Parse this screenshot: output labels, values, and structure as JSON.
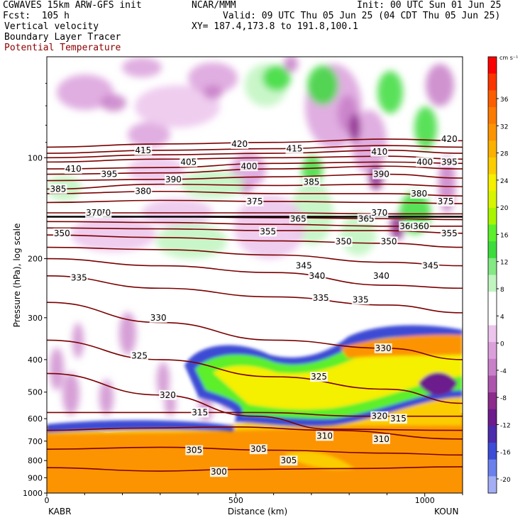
{
  "header": {
    "model": "CGWAVES 15km ARW-GFS init",
    "org": "NCAR/MMM",
    "init": "Init: 00 UTC Sun 01 Jun 25",
    "fcst": "Fcst:  105 h",
    "valid": "Valid: 09 UTC Thu 05 Jun 25 (04 CDT Thu 05 Jun 25)",
    "field1": "Vertical velocity",
    "field2": "Boundary Layer Tracer",
    "field3": "Potential Temperature",
    "xy": "XY= 187.4,173.8 to 191.8,100.1"
  },
  "colors": {
    "theta_line": "#7a0000",
    "potential_temp_label": "#8b0000",
    "tropopause": "#000000"
  },
  "chart_data": {
    "type": "heatmap",
    "xlabel": "Distance (km)",
    "ylabel": "Pressure (hPa), log scale",
    "xlim": [
      0,
      1100
    ],
    "x_ticks": [
      0,
      500,
      1000
    ],
    "ylim": [
      1000,
      50
    ],
    "y_scale": "log",
    "y_ticks": [
      100,
      200,
      300,
      400,
      500,
      600,
      700,
      800,
      900,
      1000
    ],
    "endpoints": {
      "left": "KABR",
      "right": "KOUN"
    },
    "colorbar": {
      "units": "cm s⁻¹",
      "ticks": [
        36,
        32,
        28,
        24,
        20,
        16,
        12,
        8,
        4,
        0,
        -4,
        -8,
        -12,
        -16,
        -20
      ],
      "colors": [
        "#fb0000",
        "#fb3500",
        "#fb5e00",
        "#fb7a00",
        "#fb9400",
        "#fbb100",
        "#fbcc00",
        "#f5ef00",
        "#d7f500",
        "#a9f500",
        "#5cef2c",
        "#3cdc3c",
        "#84e884",
        "#c0f5c0",
        "#ffffff",
        "#ffffff",
        "#ecc4ec",
        "#dba0dc",
        "#c880c8",
        "#ad55ad",
        "#8c2c8c",
        "#6c1c8c",
        "#4a2cac",
        "#3c4cd4",
        "#6c80ec",
        "#a4aef5"
      ]
    },
    "tropopause_pressure": 150,
    "isentropes": [
      {
        "theta": 300,
        "points": [
          [
            0,
            840
          ],
          [
            300,
            860
          ],
          [
            500,
            850
          ],
          [
            800,
            845
          ],
          [
            1100,
            835
          ]
        ],
        "label_x": 455,
        "label_p": 865
      },
      {
        "theta": 305,
        "points": [
          [
            0,
            740
          ],
          [
            300,
            730
          ],
          [
            600,
            745
          ],
          [
            900,
            760
          ],
          [
            1100,
            770
          ]
        ],
        "label_x": 390,
        "label_p": 745
      },
      {
        "theta": 310,
        "points": [
          [
            0,
            650
          ],
          [
            250,
            640
          ],
          [
            500,
            635
          ],
          [
            750,
            650
          ],
          [
            1100,
            690
          ]
        ],
        "label_x": 735,
        "label_p": 675
      },
      {
        "theta": 315,
        "points": [
          [
            0,
            575
          ],
          [
            300,
            575
          ],
          [
            550,
            575
          ],
          [
            850,
            590
          ],
          [
            1100,
            590
          ]
        ],
        "label_x": 930,
        "label_p": 600
      },
      {
        "theta": 320,
        "points": [
          [
            0,
            440
          ],
          [
            300,
            510
          ],
          [
            550,
            590
          ],
          [
            750,
            645
          ],
          [
            1100,
            650
          ]
        ],
        "label_x": 320,
        "label_p": 510
      },
      {
        "theta": 325,
        "points": [
          [
            0,
            350
          ],
          [
            300,
            400
          ],
          [
            600,
            450
          ],
          [
            900,
            490
          ],
          [
            1100,
            540
          ]
        ],
        "label_x": 245,
        "label_p": 390
      },
      {
        "theta": 330,
        "points": [
          [
            0,
            270
          ],
          [
            300,
            310
          ],
          [
            600,
            350
          ],
          [
            900,
            370
          ],
          [
            1100,
            400
          ]
        ],
        "label_x": 295,
        "label_p": 300
      },
      {
        "theta": 335,
        "points": [
          [
            0,
            225
          ],
          [
            300,
            245
          ],
          [
            600,
            260
          ],
          [
            900,
            275
          ],
          [
            1100,
            290
          ]
        ],
        "label_x": 85,
        "label_p": 228
      },
      {
        "theta": 340,
        "points": [
          [
            0,
            200
          ],
          [
            300,
            210
          ],
          [
            600,
            220
          ],
          [
            900,
            240
          ],
          [
            1100,
            245
          ]
        ],
        "label_x": 715,
        "label_p": 225
      },
      {
        "theta": 345,
        "points": [
          [
            0,
            185
          ],
          [
            300,
            188
          ],
          [
            600,
            195
          ],
          [
            900,
            205
          ],
          [
            1100,
            210
          ]
        ],
        "label_x": 680,
        "label_p": 210
      },
      {
        "theta": 350,
        "points": [
          [
            0,
            170
          ],
          [
            300,
            173
          ],
          [
            600,
            177
          ],
          [
            900,
            180
          ],
          [
            1100,
            185
          ]
        ],
        "label_x": 785,
        "label_p": 178
      },
      {
        "theta": 355,
        "points": [
          [
            0,
            162
          ],
          [
            300,
            163
          ],
          [
            600,
            165
          ],
          [
            900,
            165
          ],
          [
            1100,
            168
          ]
        ],
        "label_x": 585,
        "label_p": 166
      },
      {
        "theta": 360,
        "points": [
          [
            0,
            155
          ],
          [
            300,
            156
          ],
          [
            600,
            158
          ],
          [
            900,
            160
          ],
          [
            1100,
            160
          ]
        ],
        "label_x": 955,
        "label_p": 160
      },
      {
        "theta": 365,
        "points": [
          [
            0,
            150
          ],
          [
            300,
            150
          ],
          [
            600,
            151
          ],
          [
            900,
            152
          ],
          [
            1100,
            153
          ]
        ],
        "label_x": 665,
        "label_p": 152
      },
      {
        "theta": 370,
        "points": [
          [
            0,
            146
          ],
          [
            300,
            146
          ],
          [
            600,
            146
          ],
          [
            900,
            147
          ],
          [
            1100,
            147
          ]
        ],
        "label_x": 148,
        "label_p": 146
      },
      {
        "theta": 375,
        "points": [
          [
            0,
            136
          ],
          [
            300,
            134
          ],
          [
            600,
            135
          ],
          [
            900,
            136
          ],
          [
            1100,
            137
          ]
        ],
        "label_x": 550,
        "label_p": 135
      },
      {
        "theta": 380,
        "points": [
          [
            0,
            128
          ],
          [
            300,
            126
          ],
          [
            600,
            128
          ],
          [
            900,
            128
          ],
          [
            1100,
            130
          ]
        ],
        "label_x": 255,
        "label_p": 126
      },
      {
        "theta": 385,
        "points": [
          [
            0,
            124
          ],
          [
            300,
            120
          ],
          [
            600,
            121
          ],
          [
            900,
            120
          ],
          [
            1100,
            122
          ]
        ],
        "label_x": 700,
        "label_p": 118
      },
      {
        "theta": 390,
        "points": [
          [
            0,
            117
          ],
          [
            300,
            116
          ],
          [
            600,
            114
          ],
          [
            900,
            112
          ],
          [
            1100,
            115
          ]
        ],
        "label_x": 335,
        "label_p": 116
      },
      {
        "theta": 395,
        "points": [
          [
            0,
            112
          ],
          [
            300,
            111
          ],
          [
            600,
            108
          ],
          [
            900,
            106
          ],
          [
            1100,
            108
          ]
        ],
        "label_x": 165,
        "label_p": 112
      },
      {
        "theta": 400,
        "points": [
          [
            0,
            108
          ],
          [
            300,
            107
          ],
          [
            600,
            104
          ],
          [
            900,
            103
          ],
          [
            1100,
            104
          ]
        ],
        "label_x": 535,
        "label_p": 106
      },
      {
        "theta": 405,
        "points": [
          [
            0,
            103
          ],
          [
            300,
            101
          ],
          [
            600,
            100
          ],
          [
            900,
            99
          ],
          [
            1100,
            101
          ]
        ],
        "label_x": 375,
        "label_p": 103
      },
      {
        "theta": 410,
        "points": [
          [
            0,
            100
          ],
          [
            300,
            98
          ],
          [
            600,
            97
          ],
          [
            900,
            95
          ],
          [
            1100,
            97
          ]
        ],
        "label_x": 880,
        "label_p": 96
      },
      {
        "theta": 415,
        "points": [
          [
            0,
            97
          ],
          [
            300,
            95
          ],
          [
            600,
            94
          ],
          [
            900,
            92
          ],
          [
            1100,
            93
          ]
        ],
        "label_x": 255,
        "label_p": 95
      },
      {
        "theta": 420,
        "points": [
          [
            0,
            93
          ],
          [
            300,
            91
          ],
          [
            600,
            90
          ],
          [
            900,
            88
          ],
          [
            1100,
            89
          ]
        ],
        "label_x": 510,
        "label_p": 91
      }
    ],
    "extra_labels": [
      {
        "text": "410",
        "x": 70,
        "p": 108
      },
      {
        "text": "385",
        "x": 30,
        "p": 124
      },
      {
        "text": "370",
        "x": 125,
        "p": 146
      },
      {
        "text": "350",
        "x": 40,
        "p": 168
      },
      {
        "text": "315",
        "x": 405,
        "p": 575
      },
      {
        "text": "305",
        "x": 560,
        "p": 740
      },
      {
        "text": "305",
        "x": 640,
        "p": 800
      },
      {
        "text": "310",
        "x": 885,
        "p": 690
      },
      {
        "text": "320",
        "x": 880,
        "p": 590
      },
      {
        "text": "325",
        "x": 720,
        "p": 450
      },
      {
        "text": "330",
        "x": 890,
        "p": 370
      },
      {
        "text": "335",
        "x": 725,
        "p": 262
      },
      {
        "text": "335",
        "x": 830,
        "p": 265
      },
      {
        "text": "340",
        "x": 885,
        "p": 225
      },
      {
        "text": "345",
        "x": 1015,
        "p": 210
      },
      {
        "text": "350",
        "x": 905,
        "p": 178
      },
      {
        "text": "355",
        "x": 1065,
        "p": 168
      },
      {
        "text": "360",
        "x": 990,
        "p": 160
      },
      {
        "text": "365",
        "x": 845,
        "p": 152
      },
      {
        "text": "370",
        "x": 880,
        "p": 146
      },
      {
        "text": "375",
        "x": 1055,
        "p": 135
      },
      {
        "text": "380",
        "x": 985,
        "p": 128
      },
      {
        "text": "390",
        "x": 885,
        "p": 112
      },
      {
        "text": "395",
        "x": 1065,
        "p": 103
      },
      {
        "text": "400",
        "x": 1000,
        "p": 103
      },
      {
        "text": "415",
        "x": 655,
        "p": 94
      },
      {
        "text": "420",
        "x": 1065,
        "p": 88
      }
    ]
  }
}
